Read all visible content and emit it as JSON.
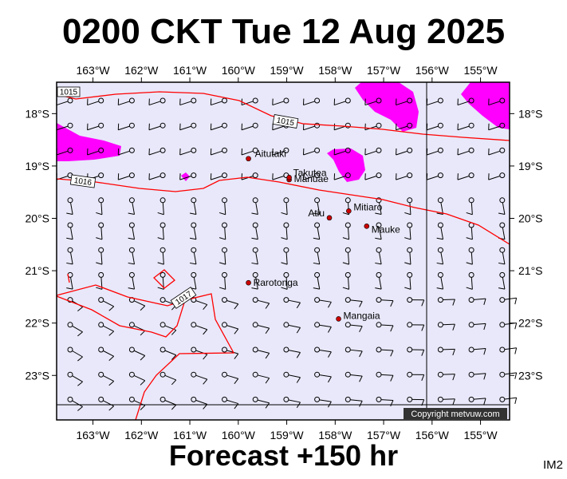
{
  "header": {
    "title": "0200 CKT Tue 12 Aug 2025",
    "subtitle": "Forecast +150 hr",
    "corner_tag": "IM2"
  },
  "map": {
    "lon_range": [
      -163.75,
      -154.4
    ],
    "lat_range": [
      -23.85,
      -17.4
    ],
    "background": "#e8e8fa",
    "high_wind_color": "#ff00ff",
    "isobar_color": "#ff0000",
    "lon_ticks": [
      "163°W",
      "162°W",
      "161°W",
      "160°W",
      "159°W",
      "158°W",
      "157°W",
      "156°W",
      "155°W"
    ],
    "lat_ticks": [
      "18°S",
      "19°S",
      "20°S",
      "21°S",
      "22°S",
      "23°S"
    ],
    "isobar_labels": [
      "1015",
      "1015",
      "1016",
      "1017"
    ],
    "places": [
      {
        "name": "Aitutaki",
        "lon": -159.79,
        "lat": -18.86
      },
      {
        "name": "Manuae",
        "lon": -158.95,
        "lat": -19.26
      },
      {
        "name": "Takutea",
        "lon": -158.95,
        "lat": -19.22
      },
      {
        "name": "Atiu",
        "lon": -158.12,
        "lat": -19.99
      },
      {
        "name": "Mitiaro",
        "lon": -157.72,
        "lat": -19.86
      },
      {
        "name": "Mauke",
        "lon": -157.35,
        "lat": -20.15
      },
      {
        "name": "Rarotonga",
        "lon": -159.79,
        "lat": -21.23
      },
      {
        "name": "Mangaia",
        "lon": -157.93,
        "lat": -21.92
      }
    ],
    "copyright": "Copyright metvuw.com"
  }
}
